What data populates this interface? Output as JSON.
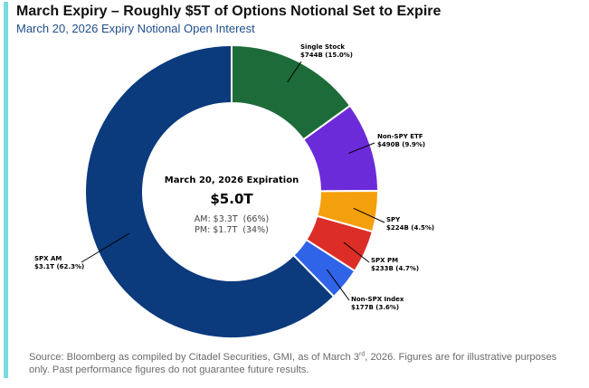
{
  "header": {
    "title": "March Expiry – Roughly $5T of Options Notional Set to Expire",
    "subtitle": "March 20, 2026 Expiry Notional Open Interest"
  },
  "footer": {
    "source_pre": "Source: Bloomberg as compiled by Citadel Securities, GMI, as of March 3",
    "source_sup": "rd",
    "source_post": ", 2026. Figures are for illustrative purposes only. Past performance figures do not guarantee future results."
  },
  "chart_data": {
    "type": "pie",
    "variant": "donut",
    "title": "March 20, 2026 Expiry Notional Open Interest",
    "unit": "USD",
    "slices": [
      {
        "name": "Single Stock",
        "value_label": "$744B (15.0%)",
        "value": 744,
        "percent": 15.0,
        "color": "#1e6b3a"
      },
      {
        "name": "Non-SPY ETF",
        "value_label": "$490B (9.9%)",
        "value": 490,
        "percent": 9.9,
        "color": "#6c2bd9"
      },
      {
        "name": "SPY",
        "value_label": "$224B (4.5%)",
        "value": 224,
        "percent": 4.5,
        "color": "#f4a00c"
      },
      {
        "name": "SPX PM",
        "value_label": "$233B (4.7%)",
        "value": 233,
        "percent": 4.7,
        "color": "#dc2d27"
      },
      {
        "name": "Non-SPX Index",
        "value_label": "$177B (3.6%)",
        "value": 177,
        "percent": 3.6,
        "color": "#2f64e8"
      },
      {
        "name": "SPX AM",
        "value_label": "$3.1T (62.3%)",
        "value": 3100,
        "percent": 62.3,
        "color": "#0b3a7d"
      }
    ],
    "center": {
      "title": "March 20, 2026 Expiration",
      "total": "$5.0T",
      "line1": "AM: $3.3T  (66%)",
      "line2": "PM: $1.7T  (34%)"
    }
  }
}
